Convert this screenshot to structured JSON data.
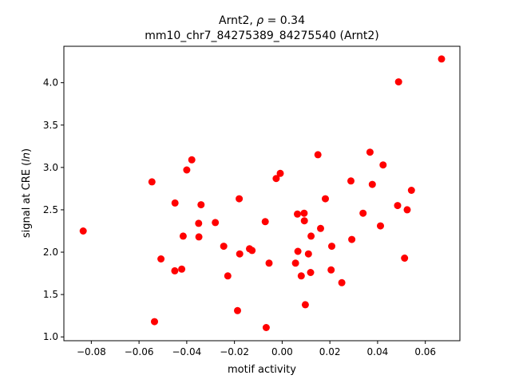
{
  "chart_data": {
    "type": "scatter",
    "title_line1": "Arnt2, ρ = 0.34",
    "title_line2": "mm10_chr7_84275389_84275540 (Arnt2)",
    "xlabel": "motif activity",
    "ylabel": "signal at CRE (ln)",
    "xlim": [
      -0.0915,
      0.0745
    ],
    "ylim": [
      0.955,
      4.43
    ],
    "x_ticks": [
      -0.08,
      -0.06,
      -0.04,
      -0.02,
      0.0,
      0.02,
      0.04,
      0.06
    ],
    "x_tick_labels": [
      "−0.08",
      "−0.06",
      "−0.04",
      "−0.02",
      "0.00",
      "0.02",
      "0.04",
      "0.06"
    ],
    "y_ticks": [
      1.0,
      1.5,
      2.0,
      2.5,
      3.0,
      3.5,
      4.0
    ],
    "y_tick_labels": [
      "1.0",
      "1.5",
      "2.0",
      "2.5",
      "3.0",
      "3.5",
      "4.0"
    ],
    "grid": false,
    "marker_color": "#ff0000",
    "points": [
      [
        -0.0834,
        2.25
      ],
      [
        -0.0546,
        2.83
      ],
      [
        -0.0535,
        1.18
      ],
      [
        -0.0508,
        1.92
      ],
      [
        -0.0449,
        2.58
      ],
      [
        -0.045,
        1.78
      ],
      [
        -0.0421,
        1.8
      ],
      [
        -0.0415,
        2.19
      ],
      [
        -0.04,
        2.97
      ],
      [
        -0.0379,
        3.09
      ],
      [
        -0.035,
        2.34
      ],
      [
        -0.0349,
        2.18
      ],
      [
        -0.034,
        2.56
      ],
      [
        -0.028,
        2.35
      ],
      [
        -0.0245,
        2.07
      ],
      [
        -0.0228,
        1.72
      ],
      [
        -0.0187,
        1.31
      ],
      [
        -0.018,
        2.63
      ],
      [
        -0.0178,
        1.98
      ],
      [
        -0.0137,
        2.04
      ],
      [
        -0.0126,
        2.02
      ],
      [
        -0.0071,
        2.36
      ],
      [
        -0.0067,
        1.11
      ],
      [
        -0.0055,
        1.87
      ],
      [
        -0.0025,
        2.87
      ],
      [
        -0.0008,
        2.93
      ],
      [
        0.0056,
        1.87
      ],
      [
        0.0064,
        2.45
      ],
      [
        0.0066,
        2.01
      ],
      [
        0.008,
        1.72
      ],
      [
        0.0092,
        2.46
      ],
      [
        0.0093,
        2.37
      ],
      [
        0.0097,
        1.38
      ],
      [
        0.011,
        1.98
      ],
      [
        0.0119,
        1.76
      ],
      [
        0.0121,
        2.19
      ],
      [
        0.015,
        3.15
      ],
      [
        0.0161,
        2.28
      ],
      [
        0.0181,
        2.63
      ],
      [
        0.0205,
        1.79
      ],
      [
        0.0208,
        2.07
      ],
      [
        0.025,
        1.64
      ],
      [
        0.0288,
        2.84
      ],
      [
        0.0292,
        2.15
      ],
      [
        0.0339,
        2.46
      ],
      [
        0.0368,
        3.18
      ],
      [
        0.0378,
        2.8
      ],
      [
        0.0412,
        2.31
      ],
      [
        0.0423,
        3.03
      ],
      [
        0.0484,
        2.55
      ],
      [
        0.0488,
        4.01
      ],
      [
        0.0513,
        1.93
      ],
      [
        0.0524,
        2.5
      ],
      [
        0.0542,
        2.73
      ],
      [
        0.0668,
        4.28
      ]
    ]
  }
}
